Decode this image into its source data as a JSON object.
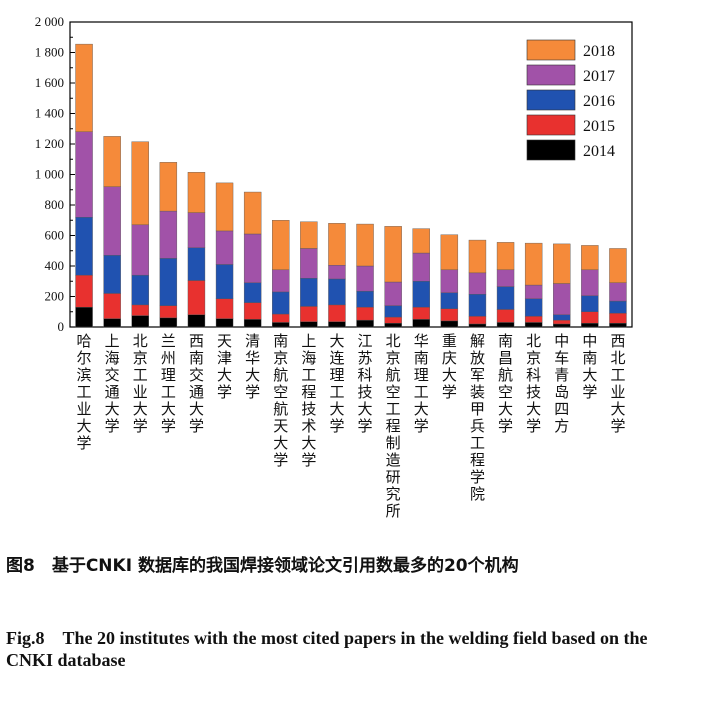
{
  "chart_data": {
    "type": "bar",
    "stacked": true,
    "categories": [
      "哈尔滨工业大学",
      "上海交通大学",
      "北京工业大学",
      "兰州理工大学",
      "西南交通大学",
      "天津大学",
      "清华大学",
      "南京航空航天大学",
      "上海工程技术大学",
      "大连理工大学",
      "江苏科技大学",
      "北京航空工程制造研究所",
      "华南理工大学",
      "重庆大学",
      "解放军装甲兵工程学院",
      "南昌航空大学",
      "北京科技大学",
      "中车青岛四方",
      "中南大学",
      "西北工业大学"
    ],
    "series": [
      {
        "name": "2014",
        "color": "#000000",
        "values": [
          130,
          55,
          75,
          60,
          80,
          55,
          50,
          30,
          35,
          35,
          45,
          25,
          50,
          40,
          20,
          30,
          30,
          20,
          25,
          25
        ]
      },
      {
        "name": "2015",
        "color": "#e8312f",
        "values": [
          210,
          165,
          70,
          80,
          225,
          130,
          110,
          55,
          100,
          110,
          85,
          40,
          80,
          80,
          50,
          85,
          40,
          25,
          75,
          65
        ]
      },
      {
        "name": "2016",
        "color": "#2052b0",
        "values": [
          380,
          250,
          195,
          310,
          215,
          225,
          130,
          145,
          185,
          170,
          105,
          75,
          170,
          105,
          145,
          150,
          115,
          35,
          105,
          80
        ]
      },
      {
        "name": "2017",
        "color": "#a152a8",
        "values": [
          560,
          450,
          330,
          310,
          230,
          220,
          320,
          145,
          195,
          90,
          165,
          155,
          185,
          150,
          140,
          110,
          90,
          205,
          170,
          120
        ]
      },
      {
        "name": "2018",
        "color": "#f58a3a",
        "values": [
          575,
          330,
          545,
          320,
          265,
          315,
          275,
          325,
          175,
          275,
          275,
          365,
          160,
          230,
          215,
          180,
          275,
          260,
          160,
          225
        ]
      }
    ],
    "yticks": [
      "0",
      "200",
      "400",
      "600",
      "800",
      "1 000",
      "1 200",
      "1 400",
      "1 600",
      "1 800",
      "2 000"
    ],
    "ylim": [
      0,
      2000
    ],
    "legend_order": [
      "2018",
      "2017",
      "2016",
      "2015",
      "2014"
    ],
    "legend_position": "top-right",
    "grid": false
  },
  "caption": {
    "cn": "图8　基于CNKI 数据库的我国焊接领域论文引用数最多的20个机构",
    "en": "Fig.8　The 20 institutes with the most cited papers in the welding field based on the CNKI database"
  }
}
